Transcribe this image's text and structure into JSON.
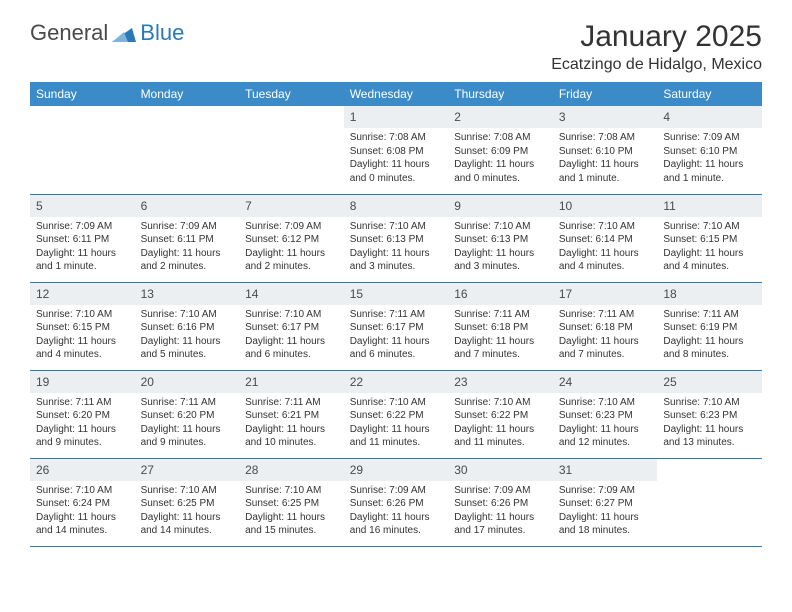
{
  "brand": {
    "name1": "General",
    "name2": "Blue"
  },
  "title": {
    "month": "January 2025",
    "location": "Ecatzingo de Hidalgo, Mexico"
  },
  "weekdays": [
    "Sunday",
    "Monday",
    "Tuesday",
    "Wednesday",
    "Thursday",
    "Friday",
    "Saturday"
  ],
  "colors": {
    "header_bg": "#3b8bc9",
    "accent": "#2a7ab9",
    "daynum_bg": "#eceff1",
    "text": "#333333"
  },
  "weeks": [
    [
      {
        "n": "",
        "sr": "",
        "ss": "",
        "dl": ""
      },
      {
        "n": "",
        "sr": "",
        "ss": "",
        "dl": ""
      },
      {
        "n": "",
        "sr": "",
        "ss": "",
        "dl": ""
      },
      {
        "n": "1",
        "sr": "Sunrise: 7:08 AM",
        "ss": "Sunset: 6:08 PM",
        "dl": "Daylight: 11 hours and 0 minutes."
      },
      {
        "n": "2",
        "sr": "Sunrise: 7:08 AM",
        "ss": "Sunset: 6:09 PM",
        "dl": "Daylight: 11 hours and 0 minutes."
      },
      {
        "n": "3",
        "sr": "Sunrise: 7:08 AM",
        "ss": "Sunset: 6:10 PM",
        "dl": "Daylight: 11 hours and 1 minute."
      },
      {
        "n": "4",
        "sr": "Sunrise: 7:09 AM",
        "ss": "Sunset: 6:10 PM",
        "dl": "Daylight: 11 hours and 1 minute."
      }
    ],
    [
      {
        "n": "5",
        "sr": "Sunrise: 7:09 AM",
        "ss": "Sunset: 6:11 PM",
        "dl": "Daylight: 11 hours and 1 minute."
      },
      {
        "n": "6",
        "sr": "Sunrise: 7:09 AM",
        "ss": "Sunset: 6:11 PM",
        "dl": "Daylight: 11 hours and 2 minutes."
      },
      {
        "n": "7",
        "sr": "Sunrise: 7:09 AM",
        "ss": "Sunset: 6:12 PM",
        "dl": "Daylight: 11 hours and 2 minutes."
      },
      {
        "n": "8",
        "sr": "Sunrise: 7:10 AM",
        "ss": "Sunset: 6:13 PM",
        "dl": "Daylight: 11 hours and 3 minutes."
      },
      {
        "n": "9",
        "sr": "Sunrise: 7:10 AM",
        "ss": "Sunset: 6:13 PM",
        "dl": "Daylight: 11 hours and 3 minutes."
      },
      {
        "n": "10",
        "sr": "Sunrise: 7:10 AM",
        "ss": "Sunset: 6:14 PM",
        "dl": "Daylight: 11 hours and 4 minutes."
      },
      {
        "n": "11",
        "sr": "Sunrise: 7:10 AM",
        "ss": "Sunset: 6:15 PM",
        "dl": "Daylight: 11 hours and 4 minutes."
      }
    ],
    [
      {
        "n": "12",
        "sr": "Sunrise: 7:10 AM",
        "ss": "Sunset: 6:15 PM",
        "dl": "Daylight: 11 hours and 4 minutes."
      },
      {
        "n": "13",
        "sr": "Sunrise: 7:10 AM",
        "ss": "Sunset: 6:16 PM",
        "dl": "Daylight: 11 hours and 5 minutes."
      },
      {
        "n": "14",
        "sr": "Sunrise: 7:10 AM",
        "ss": "Sunset: 6:17 PM",
        "dl": "Daylight: 11 hours and 6 minutes."
      },
      {
        "n": "15",
        "sr": "Sunrise: 7:11 AM",
        "ss": "Sunset: 6:17 PM",
        "dl": "Daylight: 11 hours and 6 minutes."
      },
      {
        "n": "16",
        "sr": "Sunrise: 7:11 AM",
        "ss": "Sunset: 6:18 PM",
        "dl": "Daylight: 11 hours and 7 minutes."
      },
      {
        "n": "17",
        "sr": "Sunrise: 7:11 AM",
        "ss": "Sunset: 6:18 PM",
        "dl": "Daylight: 11 hours and 7 minutes."
      },
      {
        "n": "18",
        "sr": "Sunrise: 7:11 AM",
        "ss": "Sunset: 6:19 PM",
        "dl": "Daylight: 11 hours and 8 minutes."
      }
    ],
    [
      {
        "n": "19",
        "sr": "Sunrise: 7:11 AM",
        "ss": "Sunset: 6:20 PM",
        "dl": "Daylight: 11 hours and 9 minutes."
      },
      {
        "n": "20",
        "sr": "Sunrise: 7:11 AM",
        "ss": "Sunset: 6:20 PM",
        "dl": "Daylight: 11 hours and 9 minutes."
      },
      {
        "n": "21",
        "sr": "Sunrise: 7:11 AM",
        "ss": "Sunset: 6:21 PM",
        "dl": "Daylight: 11 hours and 10 minutes."
      },
      {
        "n": "22",
        "sr": "Sunrise: 7:10 AM",
        "ss": "Sunset: 6:22 PM",
        "dl": "Daylight: 11 hours and 11 minutes."
      },
      {
        "n": "23",
        "sr": "Sunrise: 7:10 AM",
        "ss": "Sunset: 6:22 PM",
        "dl": "Daylight: 11 hours and 11 minutes."
      },
      {
        "n": "24",
        "sr": "Sunrise: 7:10 AM",
        "ss": "Sunset: 6:23 PM",
        "dl": "Daylight: 11 hours and 12 minutes."
      },
      {
        "n": "25",
        "sr": "Sunrise: 7:10 AM",
        "ss": "Sunset: 6:23 PM",
        "dl": "Daylight: 11 hours and 13 minutes."
      }
    ],
    [
      {
        "n": "26",
        "sr": "Sunrise: 7:10 AM",
        "ss": "Sunset: 6:24 PM",
        "dl": "Daylight: 11 hours and 14 minutes."
      },
      {
        "n": "27",
        "sr": "Sunrise: 7:10 AM",
        "ss": "Sunset: 6:25 PM",
        "dl": "Daylight: 11 hours and 14 minutes."
      },
      {
        "n": "28",
        "sr": "Sunrise: 7:10 AM",
        "ss": "Sunset: 6:25 PM",
        "dl": "Daylight: 11 hours and 15 minutes."
      },
      {
        "n": "29",
        "sr": "Sunrise: 7:09 AM",
        "ss": "Sunset: 6:26 PM",
        "dl": "Daylight: 11 hours and 16 minutes."
      },
      {
        "n": "30",
        "sr": "Sunrise: 7:09 AM",
        "ss": "Sunset: 6:26 PM",
        "dl": "Daylight: 11 hours and 17 minutes."
      },
      {
        "n": "31",
        "sr": "Sunrise: 7:09 AM",
        "ss": "Sunset: 6:27 PM",
        "dl": "Daylight: 11 hours and 18 minutes."
      },
      {
        "n": "",
        "sr": "",
        "ss": "",
        "dl": ""
      }
    ]
  ]
}
